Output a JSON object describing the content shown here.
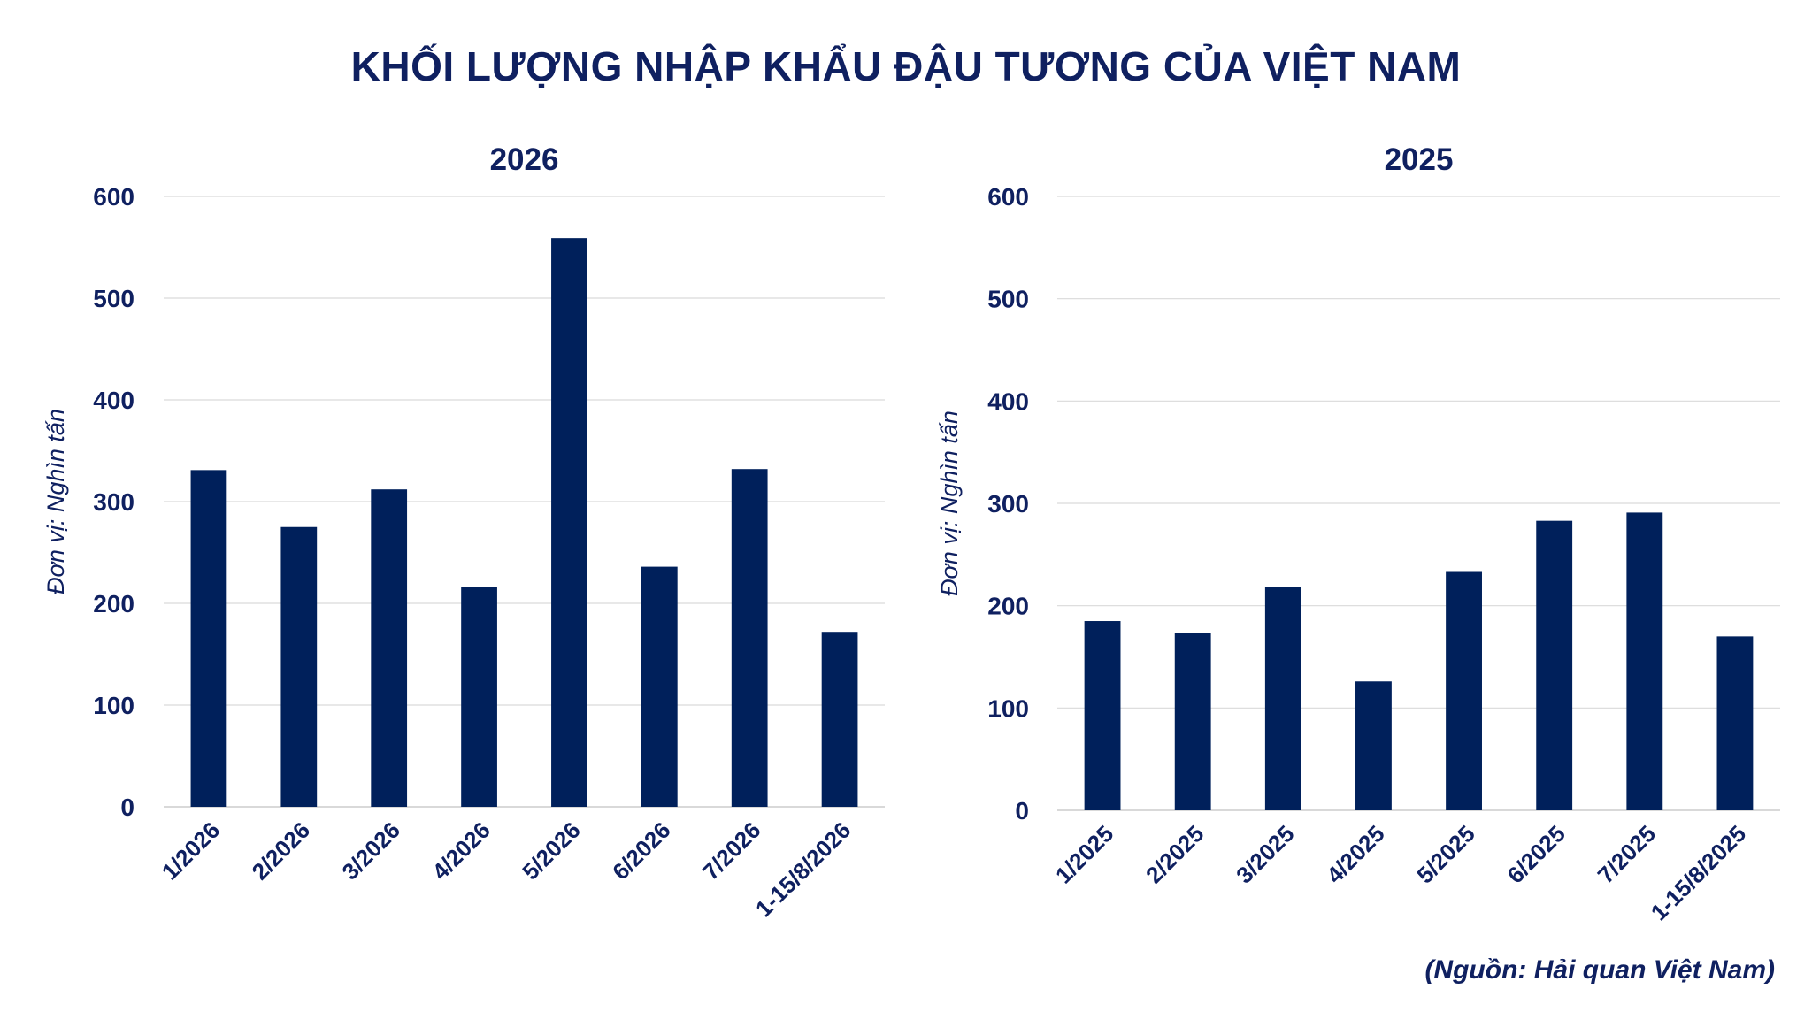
{
  "title": "KHỐI LƯỢNG NHẬP KHẨU ĐẬU TƯƠNG CỦA VIỆT NAM",
  "source": "(Nguồn: Hải quan Việt Nam)",
  "colors": {
    "bar": "#00205b",
    "text": "#0f2060",
    "grid": "#d9d9d9"
  },
  "chart_data": [
    {
      "type": "bar",
      "title": "2026",
      "ylabel": "Đơn vị: Nghìn tấn",
      "xlabel": "",
      "ylim": [
        0,
        600
      ],
      "yticks": [
        0,
        100,
        200,
        300,
        400,
        500,
        600
      ],
      "grid": true,
      "categories": [
        "1/2026",
        "2/2026",
        "3/2026",
        "4/2026",
        "5/2026",
        "6/2026",
        "7/2026",
        "1-15/8/2026"
      ],
      "values": [
        331,
        275,
        312,
        216,
        559,
        236,
        332,
        172
      ]
    },
    {
      "type": "bar",
      "title": "2025",
      "ylabel": "Đơn vị: Nghìn tấn",
      "xlabel": "",
      "ylim": [
        0,
        600
      ],
      "yticks": [
        0,
        100,
        200,
        300,
        400,
        500,
        600
      ],
      "grid": true,
      "categories": [
        "1/2025",
        "2/2025",
        "3/2025",
        "4/2025",
        "5/2025",
        "6/2025",
        "7/2025",
        "1-15/8/2025"
      ],
      "values": [
        185,
        173,
        218,
        126,
        233,
        283,
        291,
        170
      ]
    }
  ]
}
